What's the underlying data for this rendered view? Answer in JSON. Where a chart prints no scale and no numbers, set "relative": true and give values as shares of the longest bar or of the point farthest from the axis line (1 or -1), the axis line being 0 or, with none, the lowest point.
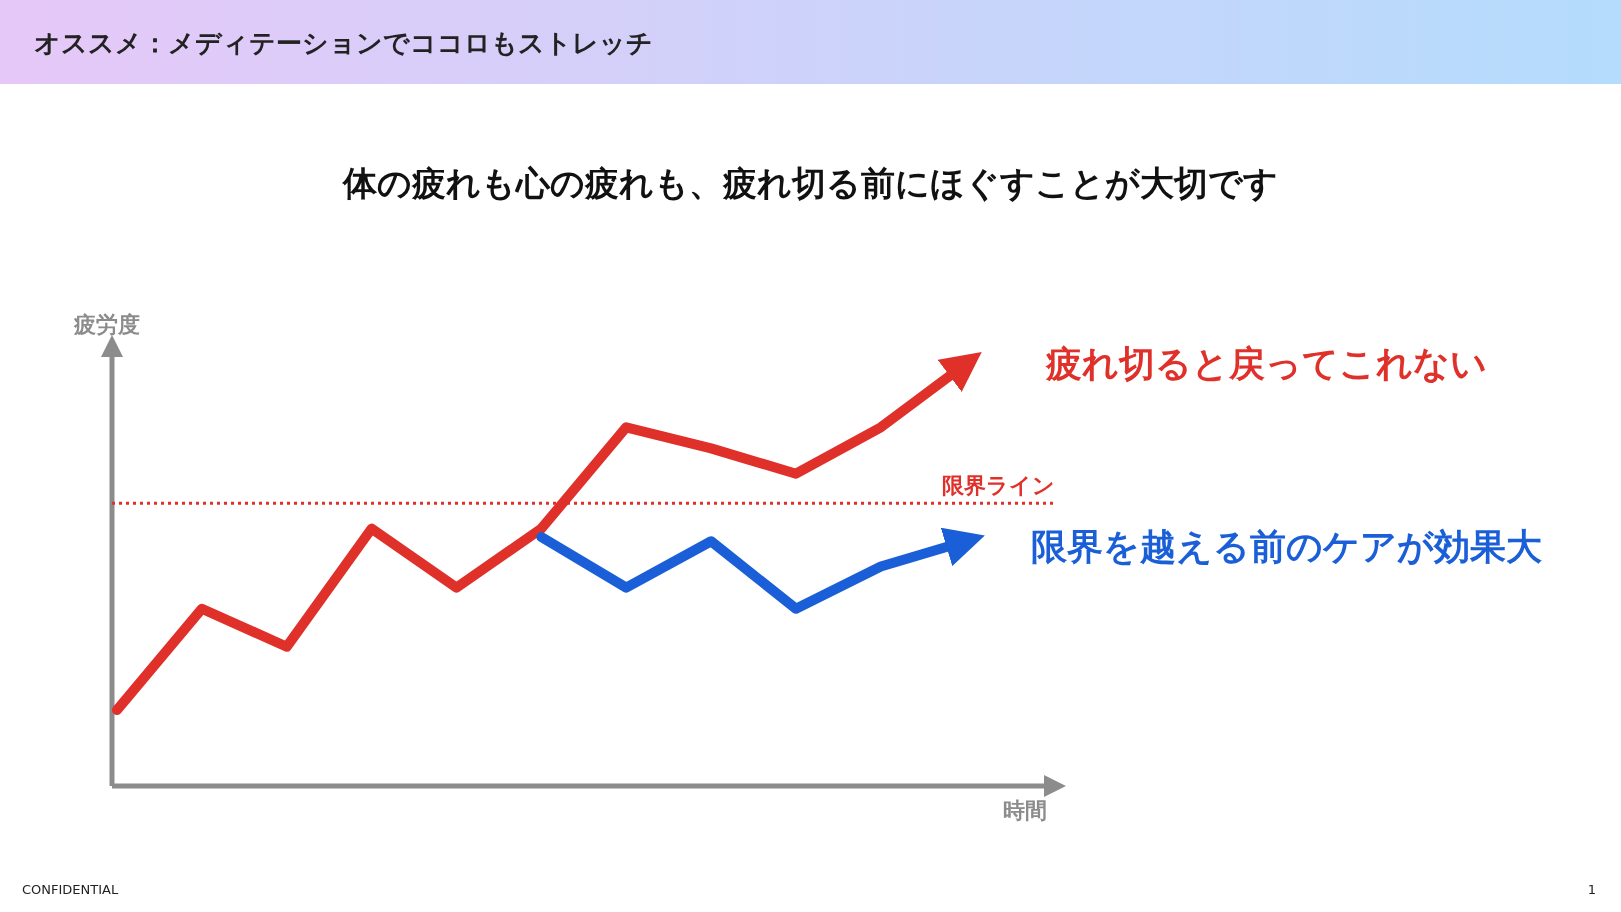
{
  "chart_data": {
    "type": "line",
    "title": "オススメ：メディテーションでココロもストレッチ",
    "subtitle": "体の疲れも心の疲れも、疲れ切る前にほぐすことが大切です",
    "xlabel": "時間",
    "ylabel": "疲労度",
    "relative": true,
    "categories": [
      null,
      null,
      null,
      null,
      null,
      null,
      null,
      null,
      null,
      null,
      null
    ],
    "legend": false,
    "grid": false,
    "marker": "none",
    "line_style": "solid",
    "series": [
      {
        "name": "疲れ切ると戻ってこれない",
        "color": "#e0302a",
        "values": [
          0.18,
          0.42,
          0.33,
          0.61,
          0.47,
          0.61,
          0.85,
          0.8,
          0.74,
          0.85,
          1.0
        ]
      },
      {
        "name": "限界を越える前のケアが効果大",
        "color": "#1a5fd8",
        "values": [
          null,
          null,
          null,
          null,
          null,
          0.59,
          0.47,
          0.58,
          0.42,
          0.52,
          0.58
        ]
      }
    ],
    "ref_lines": [
      {
        "axis": "y",
        "value": 0.67,
        "label": "限界ライン",
        "color": "#e0302a",
        "line_style": "dotted"
      }
    ],
    "annotations": [
      "CONFIDENTIAL",
      "1"
    ]
  }
}
